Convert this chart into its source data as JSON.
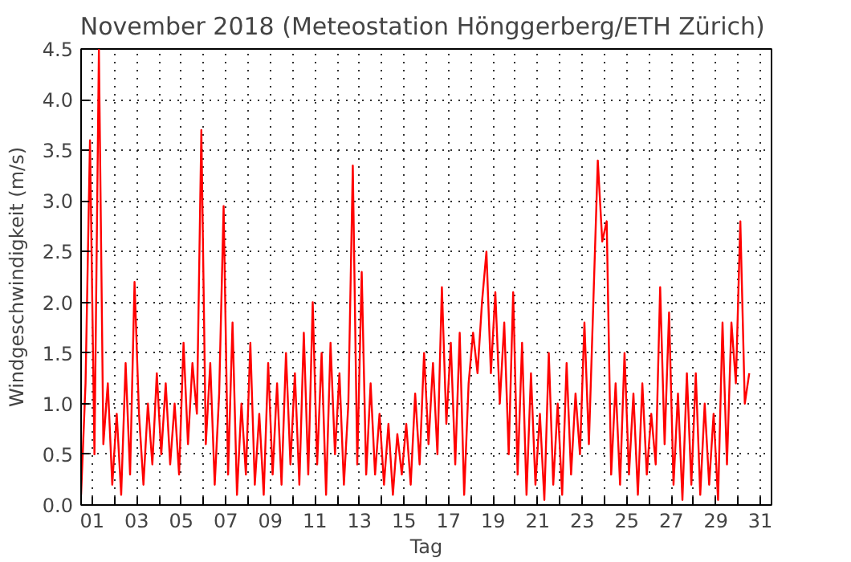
{
  "chart_data": {
    "type": "line",
    "title": "November 2018  (Meteostation Hönggerberg/ETH Zürich)",
    "xlabel": "Tag",
    "ylabel": "Windgeschwindigkeit (m/s)",
    "x": [
      0.5,
      0.7,
      0.9,
      1.1,
      1.3,
      1.5,
      1.7,
      1.9,
      2.1,
      2.3,
      2.5,
      2.7,
      2.9,
      3.1,
      3.3,
      3.5,
      3.7,
      3.9,
      4.1,
      4.3,
      4.5,
      4.7,
      4.9,
      5.1,
      5.3,
      5.5,
      5.7,
      5.9,
      6.1,
      6.3,
      6.5,
      6.7,
      6.9,
      7.1,
      7.3,
      7.5,
      7.7,
      7.9,
      8.1,
      8.3,
      8.5,
      8.7,
      8.9,
      9.1,
      9.3,
      9.5,
      9.7,
      9.9,
      10.1,
      10.3,
      10.5,
      10.7,
      10.9,
      11.1,
      11.3,
      11.5,
      11.7,
      11.9,
      12.1,
      12.3,
      12.5,
      12.7,
      12.9,
      13.1,
      13.3,
      13.5,
      13.7,
      13.9,
      14.1,
      14.3,
      14.5,
      14.7,
      14.9,
      15.1,
      15.3,
      15.5,
      15.7,
      15.9,
      16.1,
      16.3,
      16.5,
      16.7,
      16.9,
      17.1,
      17.3,
      17.5,
      17.7,
      17.9,
      18.1,
      18.3,
      18.5,
      18.7,
      18.9,
      19.1,
      19.3,
      19.5,
      19.7,
      19.9,
      20.1,
      20.3,
      20.5,
      20.7,
      20.9,
      21.1,
      21.3,
      21.5,
      21.7,
      21.9,
      22.1,
      22.3,
      22.5,
      22.7,
      22.9,
      23.1,
      23.3,
      23.5,
      23.7,
      23.9,
      24.1,
      24.3,
      24.5,
      24.7,
      24.9,
      25.1,
      25.3,
      25.5,
      25.7,
      25.9,
      26.1,
      26.3,
      26.5,
      26.7,
      26.9,
      27.1,
      27.3,
      27.5,
      27.7,
      27.9,
      28.1,
      28.3,
      28.5,
      28.7,
      28.9,
      29.1,
      29.3,
      29.5,
      29.7,
      29.9,
      30.1,
      30.3,
      30.5
    ],
    "series": [
      {
        "color": "#ff0000",
        "values": [
          0.1,
          1.2,
          3.6,
          0.5,
          4.5,
          0.6,
          1.2,
          0.2,
          0.9,
          0.1,
          1.4,
          0.3,
          2.2,
          0.9,
          0.2,
          1.0,
          0.4,
          1.3,
          0.5,
          1.2,
          0.4,
          1.0,
          0.3,
          1.6,
          0.6,
          1.4,
          0.9,
          3.7,
          0.6,
          1.4,
          0.2,
          1.1,
          2.95,
          0.3,
          1.8,
          0.1,
          1.0,
          0.3,
          1.6,
          0.2,
          0.9,
          0.1,
          1.4,
          0.3,
          1.2,
          0.2,
          1.5,
          0.4,
          1.3,
          0.2,
          1.7,
          0.3,
          2.0,
          0.4,
          1.5,
          0.1,
          1.6,
          0.5,
          1.3,
          0.2,
          1.0,
          3.35,
          0.4,
          2.3,
          0.3,
          1.2,
          0.3,
          0.9,
          0.2,
          0.8,
          0.1,
          0.7,
          0.3,
          0.8,
          0.2,
          1.1,
          0.4,
          1.5,
          0.6,
          1.4,
          0.5,
          2.15,
          0.8,
          1.6,
          0.4,
          1.7,
          0.1,
          1.2,
          1.7,
          1.3,
          2.0,
          2.5,
          1.3,
          2.1,
          1.0,
          1.8,
          0.5,
          2.1,
          0.3,
          1.6,
          0.1,
          1.3,
          0.2,
          0.9,
          0.05,
          1.5,
          0.2,
          1.0,
          0.1,
          1.4,
          0.3,
          1.1,
          0.5,
          1.8,
          0.6,
          2.0,
          3.4,
          2.6,
          2.8,
          0.3,
          1.2,
          0.2,
          1.5,
          0.3,
          1.1,
          0.1,
          1.2,
          0.3,
          0.9,
          0.4,
          2.15,
          0.6,
          1.9,
          0.2,
          1.1,
          0.05,
          1.3,
          0.2,
          1.3,
          0.1,
          1.0,
          0.2,
          0.9,
          0.05,
          1.8,
          0.4,
          1.8,
          1.2,
          2.8,
          1.0,
          1.3
        ]
      }
    ],
    "xlim": [
      0.5,
      31.5
    ],
    "xticks": [
      {
        "value": 1,
        "label": "01"
      },
      {
        "value": 2,
        "label": null
      },
      {
        "value": 3,
        "label": "03"
      },
      {
        "value": 4,
        "label": null
      },
      {
        "value": 5,
        "label": "05"
      },
      {
        "value": 6,
        "label": null
      },
      {
        "value": 7,
        "label": "07"
      },
      {
        "value": 8,
        "label": null
      },
      {
        "value": 9,
        "label": "09"
      },
      {
        "value": 10,
        "label": null
      },
      {
        "value": 11,
        "label": "11"
      },
      {
        "value": 12,
        "label": null
      },
      {
        "value": 13,
        "label": "13"
      },
      {
        "value": 14,
        "label": null
      },
      {
        "value": 15,
        "label": "15"
      },
      {
        "value": 16,
        "label": null
      },
      {
        "value": 17,
        "label": "17"
      },
      {
        "value": 18,
        "label": null
      },
      {
        "value": 19,
        "label": "19"
      },
      {
        "value": 20,
        "label": null
      },
      {
        "value": 21,
        "label": "21"
      },
      {
        "value": 22,
        "label": null
      },
      {
        "value": 23,
        "label": "23"
      },
      {
        "value": 24,
        "label": null
      },
      {
        "value": 25,
        "label": "25"
      },
      {
        "value": 26,
        "label": null
      },
      {
        "value": 27,
        "label": "27"
      },
      {
        "value": 28,
        "label": null
      },
      {
        "value": 29,
        "label": "29"
      },
      {
        "value": 30,
        "label": null
      },
      {
        "value": 31,
        "label": "31"
      }
    ],
    "ylim": [
      0,
      4.5
    ],
    "yticks": [
      {
        "value": 0,
        "label": "0.0"
      },
      {
        "value": 0.5,
        "label": "0.5"
      },
      {
        "value": 1,
        "label": "1.0"
      },
      {
        "value": 1.5,
        "label": "1.5"
      },
      {
        "value": 2,
        "label": "2.0"
      },
      {
        "value": 2.5,
        "label": "2.5"
      },
      {
        "value": 3,
        "label": "3.0"
      },
      {
        "value": 3.5,
        "label": "3.5"
      },
      {
        "value": 4,
        "label": "4.0"
      },
      {
        "value": 4.5,
        "label": "4.5"
      }
    ],
    "grid": true,
    "line_style": "solid"
  }
}
